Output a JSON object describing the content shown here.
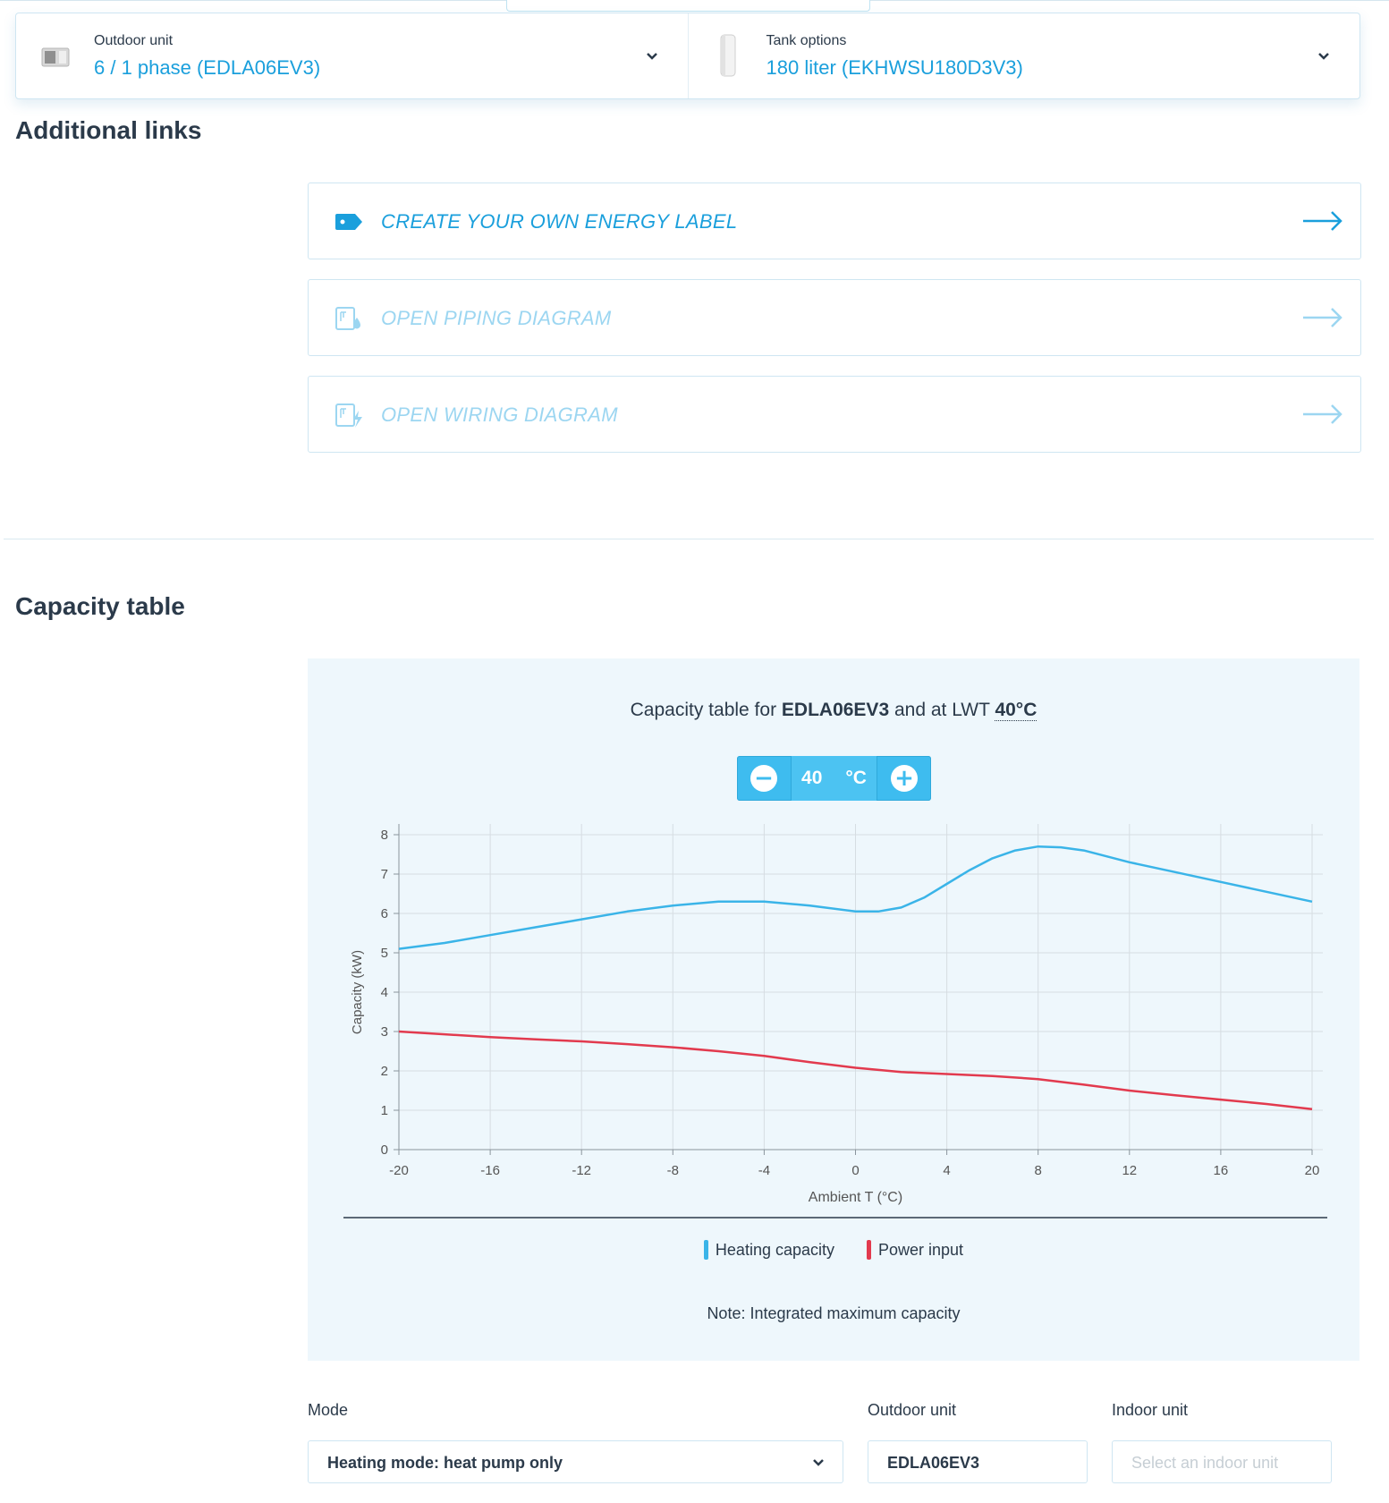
{
  "selectors": {
    "outdoor": {
      "label": "Outdoor unit",
      "value": "6 / 1 phase (EDLA06EV3)"
    },
    "tank": {
      "label": "Tank options",
      "value": "180 liter (EKHWSU180D3V3)"
    }
  },
  "additional_links": {
    "heading": "Additional links",
    "items": [
      {
        "label": "CREATE YOUR OWN ENERGY LABEL",
        "icon": "tag-icon",
        "state": "active"
      },
      {
        "label": "OPEN PIPING DIAGRAM",
        "icon": "piping-diagram-icon",
        "state": "disabled"
      },
      {
        "label": "OPEN WIRING DIAGRAM",
        "icon": "wiring-diagram-icon",
        "state": "disabled"
      }
    ]
  },
  "capacity": {
    "heading": "Capacity table",
    "title_prefix": "Capacity table for",
    "model": "EDLA06EV3",
    "title_mid": "and at LWT",
    "lwt": "40°C",
    "stepper": {
      "value": "40",
      "unit": "°C"
    },
    "legend": [
      "Heating capacity",
      "Power input"
    ],
    "note": "Note: Integrated maximum capacity"
  },
  "chart_data": {
    "type": "line",
    "xlabel": "Ambient T (°C)",
    "ylabel": "Capacity (kW)",
    "xlim": [
      -20,
      20
    ],
    "ylim": [
      0,
      8
    ],
    "xticks": [
      -20,
      -16,
      -12,
      -8,
      -4,
      0,
      4,
      8,
      12,
      16,
      20
    ],
    "yticks": [
      0,
      1,
      2,
      3,
      4,
      5,
      6,
      7,
      8
    ],
    "grid": true,
    "legend_position": "bottom",
    "series": [
      {
        "name": "Heating capacity",
        "color": "#3ab4e8",
        "x": [
          -20,
          -18,
          -16,
          -14,
          -12,
          -10,
          -8,
          -6,
          -4,
          -2,
          0,
          1,
          2,
          3,
          4,
          5,
          6,
          7,
          8,
          9,
          10,
          12,
          14,
          16,
          18,
          20
        ],
        "y": [
          5.1,
          5.25,
          5.45,
          5.65,
          5.85,
          6.05,
          6.2,
          6.3,
          6.3,
          6.2,
          6.05,
          6.05,
          6.15,
          6.4,
          6.75,
          7.1,
          7.4,
          7.6,
          7.7,
          7.68,
          7.6,
          7.3,
          7.05,
          6.8,
          6.55,
          6.3
        ]
      },
      {
        "name": "Power input",
        "color": "#e23a4e",
        "x": [
          -20,
          -18,
          -16,
          -14,
          -12,
          -10,
          -8,
          -6,
          -4,
          -2,
          0,
          2,
          4,
          6,
          8,
          10,
          12,
          14,
          16,
          18,
          20
        ],
        "y": [
          3.0,
          2.93,
          2.86,
          2.8,
          2.75,
          2.68,
          2.6,
          2.5,
          2.38,
          2.22,
          2.08,
          1.97,
          1.92,
          1.87,
          1.79,
          1.65,
          1.5,
          1.38,
          1.27,
          1.16,
          1.03
        ]
      }
    ]
  },
  "form": {
    "mode": {
      "label": "Mode",
      "value": "Heating mode: heat pump only"
    },
    "outdoor": {
      "label": "Outdoor unit",
      "value": "EDLA06EV3"
    },
    "indoor": {
      "label": "Indoor unit",
      "placeholder": "Select an indoor unit"
    }
  }
}
